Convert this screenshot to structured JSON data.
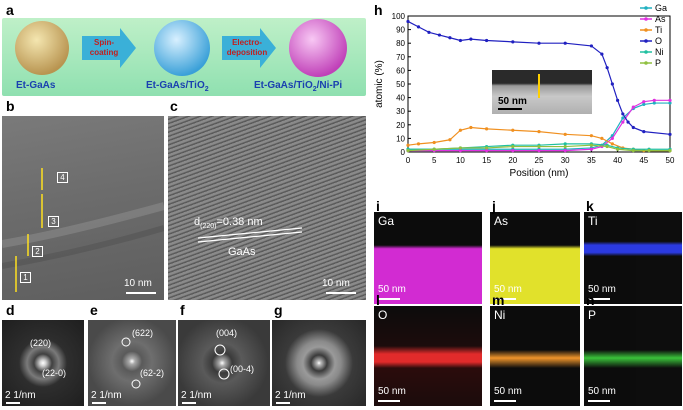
{
  "panels": {
    "a": {
      "label": "a",
      "spheres": [
        "Et-GaAs",
        "Et-GaAs/TiO",
        "Et-GaAs/TiO",
        "/Ni-Pi"
      ],
      "sub2": "2",
      "arrows": [
        "Spin-\ncoating",
        "Electro-\ndeposition"
      ],
      "arrow1_l1": "Spin-",
      "arrow1_l2": "coating",
      "arrow2_l1": "Electro-",
      "arrow2_l2": "deposition",
      "name1": "Et-GaAs",
      "name2_main": "Et-GaAs/TiO",
      "name3_main": "Et-GaAs/TiO",
      "name3_tail": "/Ni-Pi"
    },
    "b": {
      "label": "b",
      "scale": "10 nm",
      "marks": [
        "1",
        "2",
        "3",
        "4"
      ]
    },
    "c": {
      "label": "c",
      "d_main": "d",
      "d_sub": "(220)",
      "d_val": "=0.38 nm",
      "material": "GaAs",
      "scale": "10 nm"
    },
    "d": {
      "label": "d",
      "spots": [
        "(220)",
        "(22-0)"
      ],
      "scale": "2 1/nm"
    },
    "e": {
      "label": "e",
      "spots": [
        "(622)",
        "(62-2)"
      ],
      "scale": "2 1/nm"
    },
    "f": {
      "label": "f",
      "spots": [
        "(004)",
        "(00-4)"
      ],
      "scale": "2 1/nm"
    },
    "g": {
      "label": "g",
      "scale": "2 1/nm"
    },
    "h": {
      "label": "h",
      "inset_scale": "50 nm"
    },
    "maps": [
      {
        "panel": "i",
        "element": "Ga",
        "scale": "50 nm",
        "color": "#d020d0"
      },
      {
        "panel": "j",
        "element": "As",
        "scale": "50 nm",
        "color": "#e0e020"
      },
      {
        "panel": "k",
        "element": "Ti",
        "scale": "50 nm",
        "color": "#2030e0"
      },
      {
        "panel": "l",
        "element": "O",
        "scale": "50 nm",
        "color": "#e02020"
      },
      {
        "panel": "m",
        "element": "Ni",
        "scale": "50 nm",
        "color": "#f09020"
      },
      {
        "panel": "n",
        "element": "P",
        "scale": "50 nm",
        "color": "#30c030"
      }
    ]
  },
  "chart_data": {
    "type": "line",
    "xlabel": "Position (nm)",
    "ylabel": "atomic (%)",
    "xlim": [
      0,
      50
    ],
    "ylim": [
      0,
      100
    ],
    "xticks": [
      0,
      5,
      10,
      15,
      20,
      25,
      30,
      35,
      40,
      45,
      50
    ],
    "yticks": [
      0,
      10,
      20,
      30,
      40,
      50,
      60,
      70,
      80,
      90,
      100
    ],
    "legend_position": "top-right",
    "series": [
      {
        "name": "Ga",
        "color": "#20b0c0",
        "x": [
          0,
          5,
          10,
          15,
          20,
          25,
          30,
          35,
          37,
          39,
          41,
          43,
          45,
          47,
          50
        ],
        "y": [
          2,
          2,
          2,
          2,
          2,
          2,
          2,
          3,
          5,
          12,
          25,
          32,
          35,
          36,
          36
        ]
      },
      {
        "name": "As",
        "color": "#e030e0",
        "x": [
          0,
          5,
          10,
          15,
          20,
          25,
          30,
          35,
          37,
          39,
          41,
          43,
          45,
          47,
          50
        ],
        "y": [
          1,
          1,
          1,
          1,
          1,
          1,
          1,
          2,
          4,
          10,
          22,
          33,
          37,
          38,
          38
        ]
      },
      {
        "name": "Ti",
        "color": "#f09020",
        "x": [
          0,
          2,
          5,
          8,
          10,
          12,
          15,
          20,
          25,
          30,
          35,
          37,
          39,
          41,
          43,
          45,
          50
        ],
        "y": [
          5,
          6,
          7,
          9,
          16,
          18,
          17,
          16,
          15,
          13,
          12,
          10,
          6,
          3,
          2,
          1,
          1
        ]
      },
      {
        "name": "O",
        "color": "#2020c0",
        "x": [
          0,
          2,
          4,
          6,
          8,
          10,
          12,
          15,
          20,
          25,
          30,
          35,
          37,
          38,
          39,
          40,
          41,
          42,
          43,
          45,
          50
        ],
        "y": [
          96,
          92,
          88,
          86,
          84,
          82,
          83,
          82,
          81,
          80,
          80,
          78,
          72,
          62,
          50,
          38,
          28,
          22,
          18,
          15,
          13
        ]
      },
      {
        "name": "Ni",
        "color": "#20c0a0",
        "x": [
          0,
          5,
          10,
          15,
          20,
          25,
          30,
          35,
          38,
          40,
          43,
          46,
          50
        ],
        "y": [
          2,
          2,
          3,
          4,
          5,
          5,
          6,
          6,
          5,
          3,
          2,
          2,
          2
        ]
      },
      {
        "name": "P",
        "color": "#90c040",
        "x": [
          0,
          5,
          10,
          15,
          20,
          25,
          30,
          35,
          38,
          40,
          43,
          46,
          50
        ],
        "y": [
          1,
          2,
          3,
          3,
          4,
          4,
          4,
          5,
          4,
          2,
          1,
          1,
          1
        ]
      }
    ]
  }
}
